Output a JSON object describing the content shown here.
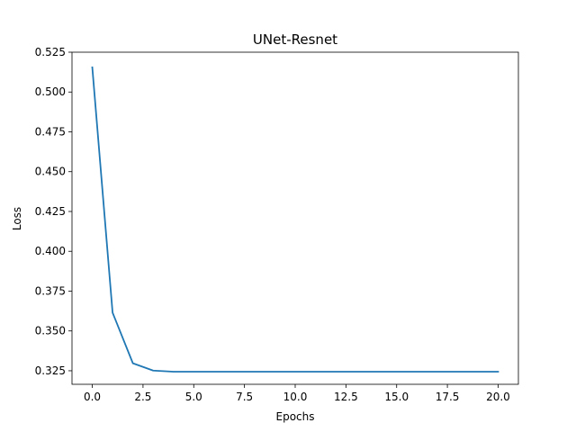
{
  "chart_data": {
    "type": "line",
    "title": "UNet-Resnet",
    "xlabel": "Epochs",
    "ylabel": "Loss",
    "xlim": [
      -1.0,
      21.0
    ],
    "ylim": [
      0.3165,
      0.525
    ],
    "xticks": [
      0.0,
      2.5,
      5.0,
      7.5,
      10.0,
      12.5,
      15.0,
      17.5,
      20.0
    ],
    "xtick_labels": [
      "0.0",
      "2.5",
      "5.0",
      "7.5",
      "10.0",
      "12.5",
      "15.0",
      "17.5",
      "20.0"
    ],
    "yticks": [
      0.325,
      0.35,
      0.375,
      0.4,
      0.425,
      0.45,
      0.475,
      0.5,
      0.525
    ],
    "ytick_labels": [
      "0.325",
      "0.350",
      "0.375",
      "0.400",
      "0.425",
      "0.450",
      "0.475",
      "0.500",
      "0.525"
    ],
    "grid": false,
    "series": [
      {
        "color": "#1f77b4",
        "x": [
          0,
          1,
          2,
          3,
          4,
          5,
          6,
          7,
          8,
          9,
          10,
          11,
          12,
          13,
          14,
          15,
          16,
          17,
          18,
          19,
          20
        ],
        "y": [
          0.5155,
          0.3615,
          0.3297,
          0.3251,
          0.3244,
          0.3244,
          0.3244,
          0.3244,
          0.3244,
          0.3244,
          0.3244,
          0.3244,
          0.3244,
          0.3244,
          0.3244,
          0.3244,
          0.3244,
          0.3244,
          0.3244,
          0.3244,
          0.3244
        ]
      }
    ]
  }
}
